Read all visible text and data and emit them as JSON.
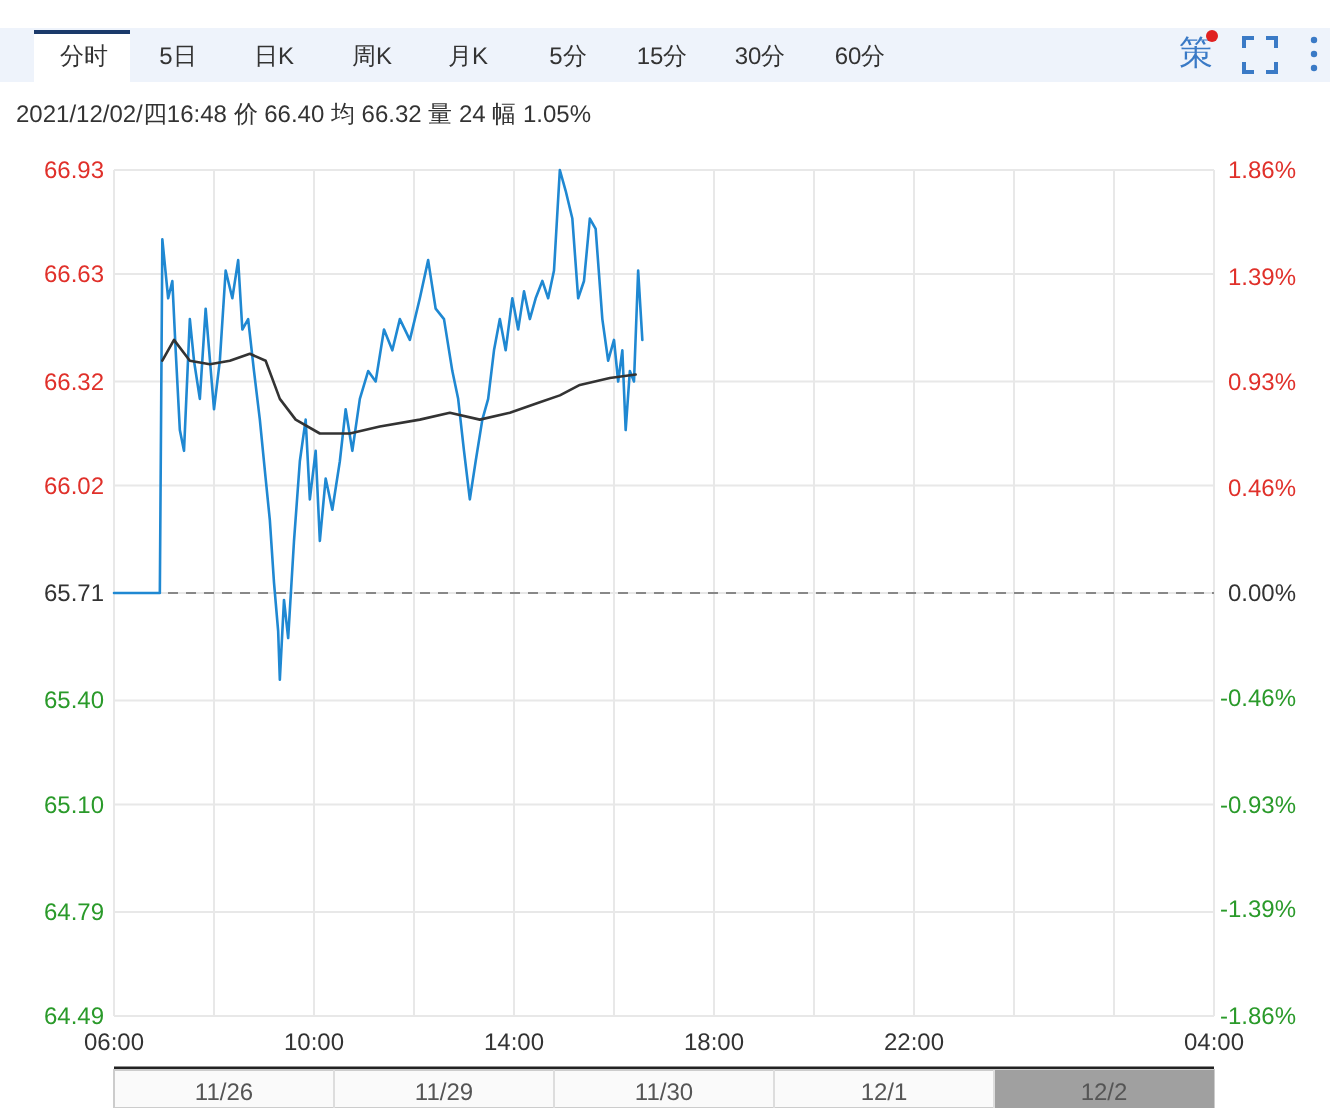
{
  "chart_data": {
    "type": "line",
    "subtitle": "2021/12/02/四16:48  价 66.40  均 66.32  量 24  幅 1.05%",
    "annotations": [
      "分时",
      "5日",
      "日K",
      "周K",
      "月K",
      "5分",
      "15分",
      "30分",
      "60分",
      "策",
      "11/26",
      "11/29",
      "11/30",
      "12/1",
      "12/2"
    ],
    "xlim": [
      "2021-12-02T06:00",
      "2021-12-03T04:00"
    ],
    "xticks": [
      {
        "value": "2021-12-02T06:00",
        "label": "06:00"
      },
      {
        "value": "2021-12-02T08:00",
        "label": null
      },
      {
        "value": "2021-12-02T10:00",
        "label": "10:00"
      },
      {
        "value": "2021-12-02T12:00",
        "label": null
      },
      {
        "value": "2021-12-02T14:00",
        "label": "14:00"
      },
      {
        "value": "2021-12-02T16:00",
        "label": null
      },
      {
        "value": "2021-12-02T18:00",
        "label": "18:00"
      },
      {
        "value": "2021-12-02T20:00",
        "label": null
      },
      {
        "value": "2021-12-02T22:00",
        "label": "22:00"
      },
      {
        "value": "2021-12-03T00:00",
        "label": null
      },
      {
        "value": "2021-12-03T02:00",
        "label": null
      },
      {
        "value": "2021-12-03T04:00",
        "label": "04:00"
      }
    ],
    "ylim": [
      64.49,
      66.93
    ],
    "yticks": [
      66.93,
      66.63,
      66.32,
      66.02,
      65.71,
      {
        "value": 65.4,
        "label": "65.40"
      },
      {
        "value": 65.1,
        "label": "65.10"
      },
      64.79,
      64.49
    ],
    "y2lim": [
      -1.86,
      1.86
    ],
    "y2ticks": [
      {
        "value": 1.86,
        "label": "1.86%"
      },
      {
        "value": 1.39,
        "label": "1.39%"
      },
      {
        "value": 0.93,
        "label": "0.93%"
      },
      {
        "value": 0.46,
        "label": "0.46%"
      },
      {
        "value": 0,
        "label": "0.00%"
      },
      {
        "value": -0.46,
        "label": "-0.46%"
      },
      {
        "value": -0.93,
        "label": "-0.93%"
      },
      {
        "value": -1.39,
        "label": "-1.39%"
      },
      {
        "value": -1.86,
        "label": "-1.86%"
      }
    ],
    "grid": true,
    "ref_lines": [
      {
        "axis": "y",
        "value": 65.71,
        "color": "#888888",
        "line_style": "dashed"
      }
    ],
    "series": [
      {
        "color": "#1f88d2",
        "x": [
          "2021-12-02T06:00",
          "2021-12-02T06:55",
          "2021-12-02T06:58",
          "2021-12-02T07:05",
          "2021-12-02T07:10",
          "2021-12-02T07:14",
          "2021-12-02T07:19",
          "2021-12-02T07:24",
          "2021-12-02T07:31",
          "2021-12-02T07:36",
          "2021-12-02T07:43",
          "2021-12-02T07:50",
          "2021-12-02T08:00",
          "2021-12-02T08:07",
          "2021-12-02T08:14",
          "2021-12-02T08:22",
          "2021-12-02T08:29",
          "2021-12-02T08:34",
          "2021-12-02T08:41",
          "2021-12-02T08:48",
          "2021-12-02T08:55",
          "2021-12-02T09:02",
          "2021-12-02T09:07",
          "2021-12-02T09:12",
          "2021-12-02T09:17",
          "2021-12-02T09:19",
          "2021-12-02T09:24",
          "2021-12-02T09:29",
          "2021-12-02T09:36",
          "2021-12-02T09:43",
          "2021-12-02T09:50",
          "2021-12-02T09:55",
          "2021-12-02T10:02",
          "2021-12-02T10:07",
          "2021-12-02T10:14",
          "2021-12-02T10:22",
          "2021-12-02T10:31",
          "2021-12-02T10:38",
          "2021-12-02T10:46",
          "2021-12-02T10:55",
          "2021-12-02T11:05",
          "2021-12-02T11:14",
          "2021-12-02T11:24",
          "2021-12-02T11:34",
          "2021-12-02T11:43",
          "2021-12-02T11:55",
          "2021-12-02T12:07",
          "2021-12-02T12:17",
          "2021-12-02T12:26",
          "2021-12-02T12:36",
          "2021-12-02T12:46",
          "2021-12-02T12:53",
          "2021-12-02T13:00",
          "2021-12-02T13:07",
          "2021-12-02T13:14",
          "2021-12-02T13:22",
          "2021-12-02T13:29",
          "2021-12-02T13:36",
          "2021-12-02T13:43",
          "2021-12-02T13:50",
          "2021-12-02T13:58",
          "2021-12-02T14:05",
          "2021-12-02T14:12",
          "2021-12-02T14:19",
          "2021-12-02T14:26",
          "2021-12-02T14:34",
          "2021-12-02T14:41",
          "2021-12-02T14:48",
          "2021-12-02T14:55",
          "2021-12-02T15:02",
          "2021-12-02T15:10",
          "2021-12-02T15:17",
          "2021-12-02T15:24",
          "2021-12-02T15:31",
          "2021-12-02T15:38",
          "2021-12-02T15:46",
          "2021-12-02T15:53",
          "2021-12-02T16:00",
          "2021-12-02T16:05",
          "2021-12-02T16:10",
          "2021-12-02T16:14",
          "2021-12-02T16:19",
          "2021-12-02T16:24",
          "2021-12-02T16:29",
          "2021-12-02T16:34"
        ],
        "values": [
          65.71,
          65.71,
          66.73,
          66.56,
          66.61,
          66.41,
          66.18,
          66.12,
          66.5,
          66.38,
          66.27,
          66.53,
          66.24,
          66.38,
          66.64,
          66.56,
          66.67,
          66.47,
          66.5,
          66.35,
          66.21,
          66.04,
          65.92,
          65.74,
          65.6,
          65.46,
          65.69,
          65.58,
          65.86,
          66.09,
          66.21,
          65.98,
          66.12,
          65.86,
          66.04,
          65.95,
          66.09,
          66.24,
          66.12,
          66.27,
          66.35,
          66.32,
          66.47,
          66.41,
          66.5,
          66.44,
          66.56,
          66.67,
          66.53,
          66.5,
          66.35,
          66.27,
          66.12,
          65.98,
          66.09,
          66.21,
          66.27,
          66.41,
          66.5,
          66.41,
          66.56,
          66.47,
          66.58,
          66.5,
          66.56,
          66.61,
          66.56,
          66.64,
          66.93,
          66.87,
          66.79,
          66.56,
          66.61,
          66.79,
          66.76,
          66.5,
          66.38,
          66.44,
          66.32,
          66.41,
          66.18,
          66.35,
          66.32,
          66.64,
          66.44
        ]
      },
      {
        "color": "#333333",
        "x": [
          "2021-12-02T06:58",
          "2021-12-02T07:12",
          "2021-12-02T07:31",
          "2021-12-02T07:55",
          "2021-12-02T08:19",
          "2021-12-02T08:43",
          "2021-12-02T09:02",
          "2021-12-02T09:19",
          "2021-12-02T09:38",
          "2021-12-02T10:07",
          "2021-12-02T10:43",
          "2021-12-02T11:19",
          "2021-12-02T12:07",
          "2021-12-02T12:43",
          "2021-12-02T13:19",
          "2021-12-02T13:55",
          "2021-12-02T14:31",
          "2021-12-02T14:55",
          "2021-12-02T15:19",
          "2021-12-02T15:55",
          "2021-12-02T16:26"
        ],
        "values": [
          66.38,
          66.44,
          66.38,
          66.37,
          66.38,
          66.4,
          66.38,
          66.27,
          66.21,
          66.17,
          66.17,
          66.19,
          66.21,
          66.23,
          66.21,
          66.23,
          66.26,
          66.28,
          66.31,
          66.33,
          66.34
        ]
      }
    ]
  }
}
